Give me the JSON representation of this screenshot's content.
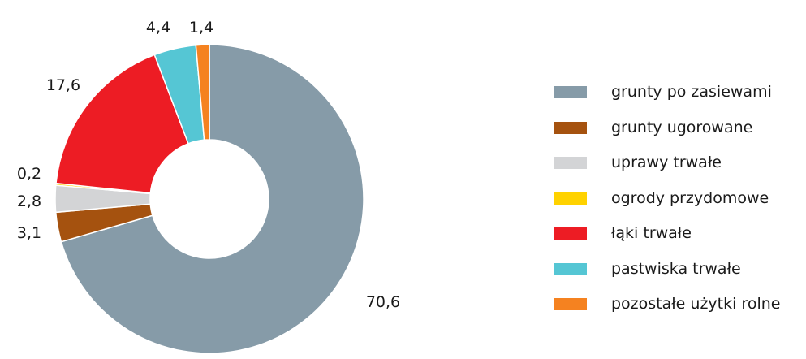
{
  "chart_data": {
    "type": "pie",
    "donut": true,
    "start_angle_deg": 0,
    "direction": "clockwise",
    "categories": [
      "grunty po zasiewami",
      "grunty ugorowane",
      "uprawy trwałe",
      "ogrody przydomowe",
      "łąki trwałe",
      "pastwiska trwałe",
      "pozostałe użytki rolne"
    ],
    "values": [
      70.6,
      3.1,
      2.8,
      0.2,
      17.6,
      4.4,
      1.4
    ],
    "labels": [
      "70,6",
      "3,1",
      "2,8",
      "0,2",
      "17,6",
      "4,4",
      "1,4"
    ],
    "colors": [
      "#869ba8",
      "#a5520f",
      "#d3d4d6",
      "#ffd200",
      "#ed1c24",
      "#55c6d4",
      "#f58220"
    ],
    "title": "",
    "legend_position": "right"
  }
}
